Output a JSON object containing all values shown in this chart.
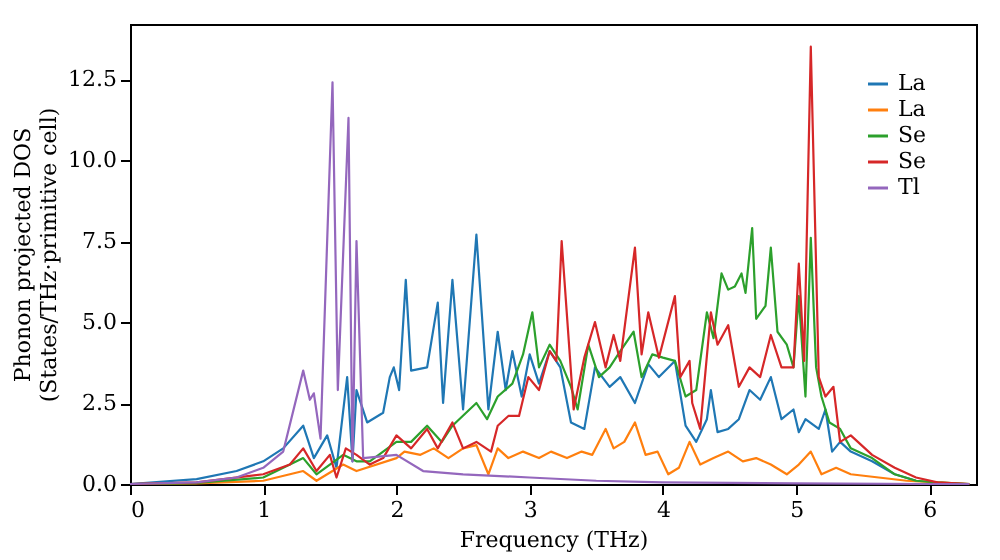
{
  "chart_data": {
    "type": "line",
    "xlabel": "Frequency (THz)",
    "ylabel": "Phonon projected DOS\n(States/THz·primitive cell)",
    "xlim": [
      0,
      6.35
    ],
    "ylim": [
      0,
      14.2
    ],
    "xticks": [
      0,
      1,
      2,
      3,
      4,
      5,
      6
    ],
    "yticks": [
      {
        "value": 0,
        "label": "0.0"
      },
      {
        "value": 2.5,
        "label": "2.5"
      },
      {
        "value": 5,
        "label": "5.0"
      },
      {
        "value": 7.5,
        "label": "7.5"
      },
      {
        "value": 10,
        "label": "10.0"
      },
      {
        "value": 12.5,
        "label": "12.5"
      }
    ],
    "grid": false,
    "legend": "top right",
    "line_style": "solid",
    "marker": "none",
    "series": [
      {
        "name": "La",
        "color": "#1f77b4",
        "x": [
          0,
          0.5,
          0.8,
          1.0,
          1.15,
          1.3,
          1.38,
          1.48,
          1.55,
          1.63,
          1.67,
          1.7,
          1.78,
          1.9,
          1.95,
          1.98,
          2.02,
          2.07,
          2.11,
          2.23,
          2.31,
          2.35,
          2.42,
          2.5,
          2.6,
          2.69,
          2.76,
          2.82,
          2.87,
          2.94,
          3.0,
          3.07,
          3.15,
          3.23,
          3.31,
          3.41,
          3.49,
          3.6,
          3.68,
          3.79,
          3.89,
          3.97,
          4.09,
          4.17,
          4.25,
          4.33,
          4.36,
          4.41,
          4.49,
          4.57,
          4.65,
          4.73,
          4.81,
          4.89,
          4.98,
          5.02,
          5.07,
          5.17,
          5.22,
          5.27,
          5.33,
          5.41,
          5.57,
          5.74,
          5.9
        ],
        "values": [
          0,
          0.15,
          0.4,
          0.7,
          1.1,
          1.8,
          0.8,
          1.5,
          0.5,
          3.3,
          0.7,
          2.9,
          1.9,
          2.2,
          3.3,
          3.6,
          2.9,
          6.3,
          3.5,
          3.6,
          5.6,
          2.5,
          6.3,
          2.3,
          7.7,
          2.3,
          4.7,
          2.9,
          4.1,
          2.7,
          4.0,
          3.1,
          4.1,
          3.6,
          1.9,
          1.7,
          3.6,
          3.0,
          3.3,
          2.5,
          3.7,
          3.3,
          3.8,
          1.8,
          1.3,
          2.0,
          2.9,
          1.6,
          1.7,
          2.0,
          2.9,
          2.6,
          3.3,
          2.0,
          2.3,
          1.6,
          2.0,
          1.7,
          2.3,
          1.0,
          1.3,
          1.0,
          0.7,
          0.3,
          0.1
        ]
      },
      {
        "name": "La",
        "color": "#ff7f0e",
        "x": [
          0,
          0.5,
          1.0,
          1.3,
          1.4,
          1.6,
          1.7,
          2.0,
          2.06,
          2.18,
          2.28,
          2.39,
          2.5,
          2.6,
          2.69,
          2.76,
          2.84,
          2.95,
          3.07,
          3.16,
          3.28,
          3.39,
          3.47,
          3.57,
          3.63,
          3.71,
          3.79,
          3.87,
          3.96,
          4.04,
          4.12,
          4.2,
          4.28,
          4.38,
          4.49,
          4.6,
          4.7,
          4.81,
          4.93,
          5.02,
          5.11,
          5.19,
          5.3,
          5.41,
          5.62,
          5.83,
          6.06,
          6.3
        ],
        "values": [
          0,
          0.02,
          0.1,
          0.4,
          0.1,
          0.6,
          0.4,
          0.8,
          1.0,
          0.9,
          1.1,
          0.8,
          1.1,
          1.2,
          0.3,
          1.1,
          0.8,
          1.0,
          0.8,
          1.0,
          0.8,
          1.0,
          0.9,
          1.7,
          1.1,
          1.3,
          1.9,
          0.9,
          1.0,
          0.3,
          0.5,
          1.3,
          0.6,
          0.8,
          1.0,
          0.7,
          0.8,
          0.6,
          0.3,
          0.6,
          1.0,
          0.3,
          0.5,
          0.3,
          0.2,
          0.1,
          0.05,
          0
        ]
      },
      {
        "name": "Se",
        "color": "#2ca02c",
        "x": [
          0,
          0.5,
          1.0,
          1.3,
          1.4,
          1.6,
          1.7,
          1.8,
          2.0,
          2.11,
          2.23,
          2.34,
          2.42,
          2.6,
          2.68,
          2.76,
          2.87,
          2.95,
          3.02,
          3.07,
          3.15,
          3.23,
          3.31,
          3.36,
          3.44,
          3.52,
          3.6,
          3.68,
          3.78,
          3.84,
          3.92,
          4.0,
          4.09,
          4.17,
          4.25,
          4.33,
          4.38,
          4.44,
          4.49,
          4.54,
          4.59,
          4.62,
          4.67,
          4.7,
          4.77,
          4.81,
          4.86,
          4.93,
          4.98,
          5.02,
          5.07,
          5.11,
          5.15,
          5.19,
          5.25,
          5.33,
          5.41,
          5.57,
          5.74,
          5.9,
          6.06,
          6.3
        ],
        "values": [
          0,
          0.03,
          0.2,
          0.8,
          0.3,
          0.9,
          0.7,
          0.7,
          1.3,
          1.3,
          1.8,
          1.3,
          1.8,
          2.5,
          2.0,
          2.7,
          3.1,
          4.0,
          5.3,
          3.6,
          4.3,
          3.8,
          3.0,
          2.3,
          4.3,
          3.3,
          3.6,
          4.1,
          4.7,
          3.3,
          4.0,
          3.9,
          3.8,
          2.7,
          2.9,
          5.3,
          4.5,
          6.5,
          6.0,
          6.1,
          6.5,
          5.9,
          7.9,
          5.1,
          5.5,
          7.3,
          4.7,
          4.3,
          3.6,
          5.8,
          2.7,
          7.6,
          3.6,
          2.7,
          1.9,
          1.7,
          1.1,
          0.8,
          0.3,
          0.1,
          0.05,
          0
        ]
      },
      {
        "name": "Se",
        "color": "#d62728",
        "x": [
          0,
          0.5,
          1.0,
          1.2,
          1.3,
          1.4,
          1.5,
          1.55,
          1.62,
          1.7,
          1.8,
          1.9,
          2.0,
          2.11,
          2.23,
          2.31,
          2.42,
          2.5,
          2.6,
          2.71,
          2.76,
          2.84,
          2.92,
          2.99,
          3.07,
          3.15,
          3.2,
          3.24,
          3.33,
          3.41,
          3.49,
          3.57,
          3.63,
          3.68,
          3.79,
          3.84,
          3.89,
          3.97,
          4.09,
          4.13,
          4.2,
          4.22,
          4.28,
          4.36,
          4.41,
          4.49,
          4.57,
          4.65,
          4.73,
          4.81,
          4.89,
          4.98,
          5.02,
          5.06,
          5.11,
          5.17,
          5.22,
          5.28,
          5.33,
          5.41,
          5.57,
          5.74,
          5.9,
          6.06,
          6.3
        ],
        "values": [
          0,
          0.05,
          0.3,
          0.6,
          1.1,
          0.4,
          0.9,
          0.2,
          1.1,
          0.9,
          0.6,
          0.8,
          1.5,
          1.1,
          1.7,
          1.1,
          1.9,
          1.1,
          1.3,
          1.0,
          1.8,
          2.1,
          2.1,
          3.3,
          2.9,
          4.1,
          3.8,
          7.5,
          2.3,
          3.9,
          5.0,
          3.6,
          4.6,
          3.8,
          7.3,
          4.0,
          5.3,
          3.9,
          5.8,
          3.3,
          3.8,
          2.5,
          1.7,
          5.3,
          4.3,
          4.9,
          3.0,
          3.6,
          3.3,
          4.6,
          3.6,
          3.6,
          6.8,
          3.8,
          13.5,
          3.3,
          2.7,
          3.0,
          1.3,
          1.5,
          0.9,
          0.5,
          0.2,
          0.05,
          0
        ]
      },
      {
        "name": "Tl",
        "color": "#9467bd",
        "x": [
          0,
          0.5,
          0.8,
          1.0,
          1.15,
          1.3,
          1.35,
          1.38,
          1.43,
          1.52,
          1.56,
          1.64,
          1.67,
          1.7,
          1.75,
          2.0,
          2.2,
          2.5,
          3.0,
          3.5,
          4.0,
          5.0,
          6.0,
          6.3
        ],
        "values": [
          0,
          0.05,
          0.2,
          0.5,
          1.0,
          3.5,
          2.6,
          2.8,
          1.4,
          12.4,
          2.9,
          11.3,
          0.7,
          7.5,
          0.8,
          0.9,
          0.4,
          0.3,
          0.2,
          0.1,
          0.05,
          0.02,
          0,
          0
        ]
      }
    ]
  }
}
